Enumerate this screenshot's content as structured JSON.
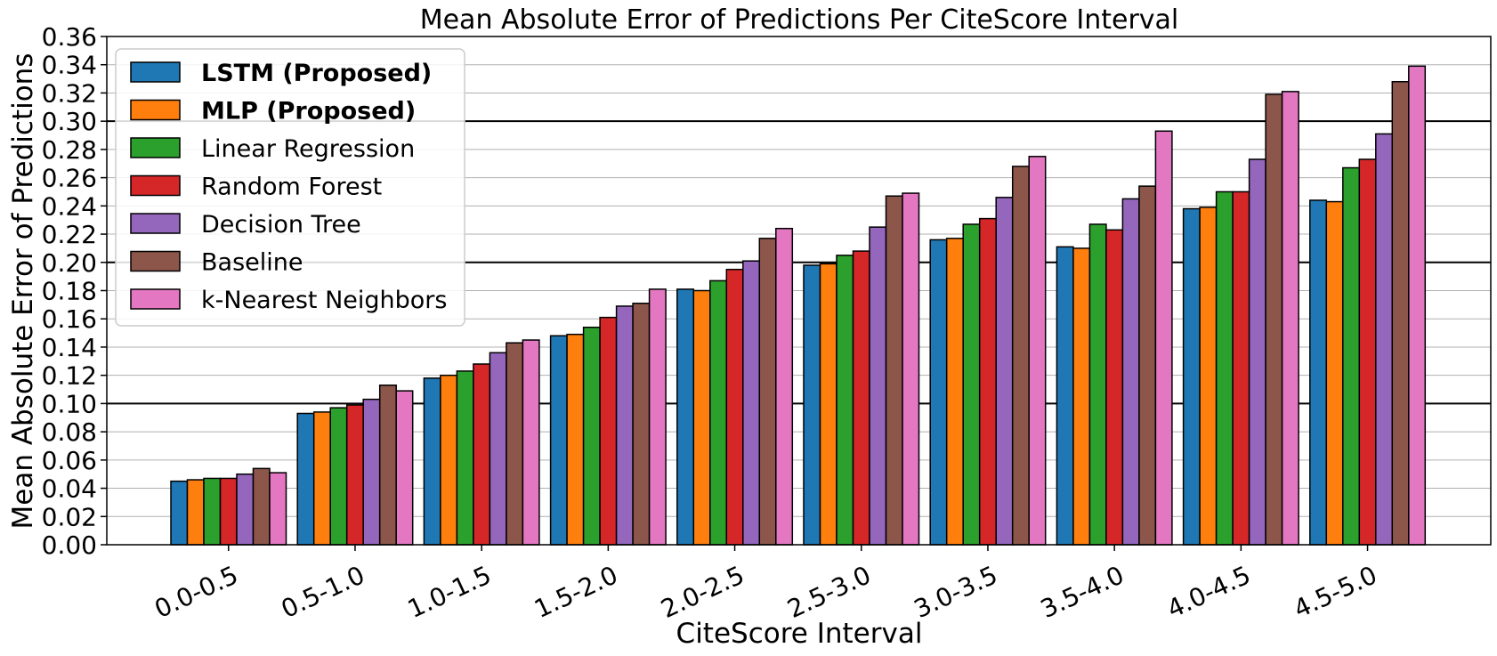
{
  "chart_data": {
    "type": "bar",
    "title": "Mean Absolute Error of Predictions Per CiteScore Interval",
    "xlabel": "CiteScore Interval",
    "ylabel": "Mean Absolute Error of Predictions",
    "ylim": [
      0,
      0.36
    ],
    "yticks": [
      "0.00",
      "0.02",
      "0.04",
      "0.06",
      "0.08",
      "0.10",
      "0.12",
      "0.14",
      "0.16",
      "0.18",
      "0.20",
      "0.22",
      "0.24",
      "0.26",
      "0.28",
      "0.30",
      "0.32",
      "0.34",
      "0.36"
    ],
    "major_gridlines": [
      0.1,
      0.2,
      0.3
    ],
    "grid": true,
    "legend_position": "top-left",
    "categories": [
      "0.0-0.5",
      "0.5-1.0",
      "1.0-1.5",
      "1.5-2.0",
      "2.0-2.5",
      "2.5-3.0",
      "3.0-3.5",
      "3.5-4.0",
      "4.0-4.5",
      "4.5-5.0"
    ],
    "series": [
      {
        "name": "LSTM (Proposed)",
        "bold": true,
        "color": "#1f77b4",
        "values": [
          0.045,
          0.093,
          0.118,
          0.148,
          0.181,
          0.198,
          0.216,
          0.211,
          0.238,
          0.244
        ]
      },
      {
        "name": "MLP (Proposed)",
        "bold": true,
        "color": "#ff7f0e",
        "values": [
          0.046,
          0.094,
          0.12,
          0.149,
          0.18,
          0.199,
          0.217,
          0.21,
          0.239,
          0.243
        ]
      },
      {
        "name": "Linear Regression",
        "bold": false,
        "color": "#2ca02c",
        "values": [
          0.047,
          0.097,
          0.123,
          0.154,
          0.187,
          0.205,
          0.227,
          0.227,
          0.25,
          0.267
        ]
      },
      {
        "name": "Random Forest",
        "bold": false,
        "color": "#d62728",
        "values": [
          0.047,
          0.099,
          0.128,
          0.161,
          0.195,
          0.208,
          0.231,
          0.223,
          0.25,
          0.273
        ]
      },
      {
        "name": "Decision Tree",
        "bold": false,
        "color": "#9467bd",
        "values": [
          0.05,
          0.103,
          0.136,
          0.169,
          0.201,
          0.225,
          0.246,
          0.245,
          0.273,
          0.291
        ]
      },
      {
        "name": "Baseline",
        "bold": false,
        "color": "#8c564b",
        "values": [
          0.054,
          0.113,
          0.143,
          0.171,
          0.217,
          0.247,
          0.268,
          0.254,
          0.319,
          0.328
        ]
      },
      {
        "name": "k-Nearest Neighbors",
        "bold": false,
        "color": "#e377c2",
        "values": [
          0.051,
          0.109,
          0.145,
          0.181,
          0.224,
          0.249,
          0.275,
          0.293,
          0.321,
          0.339
        ]
      }
    ]
  }
}
